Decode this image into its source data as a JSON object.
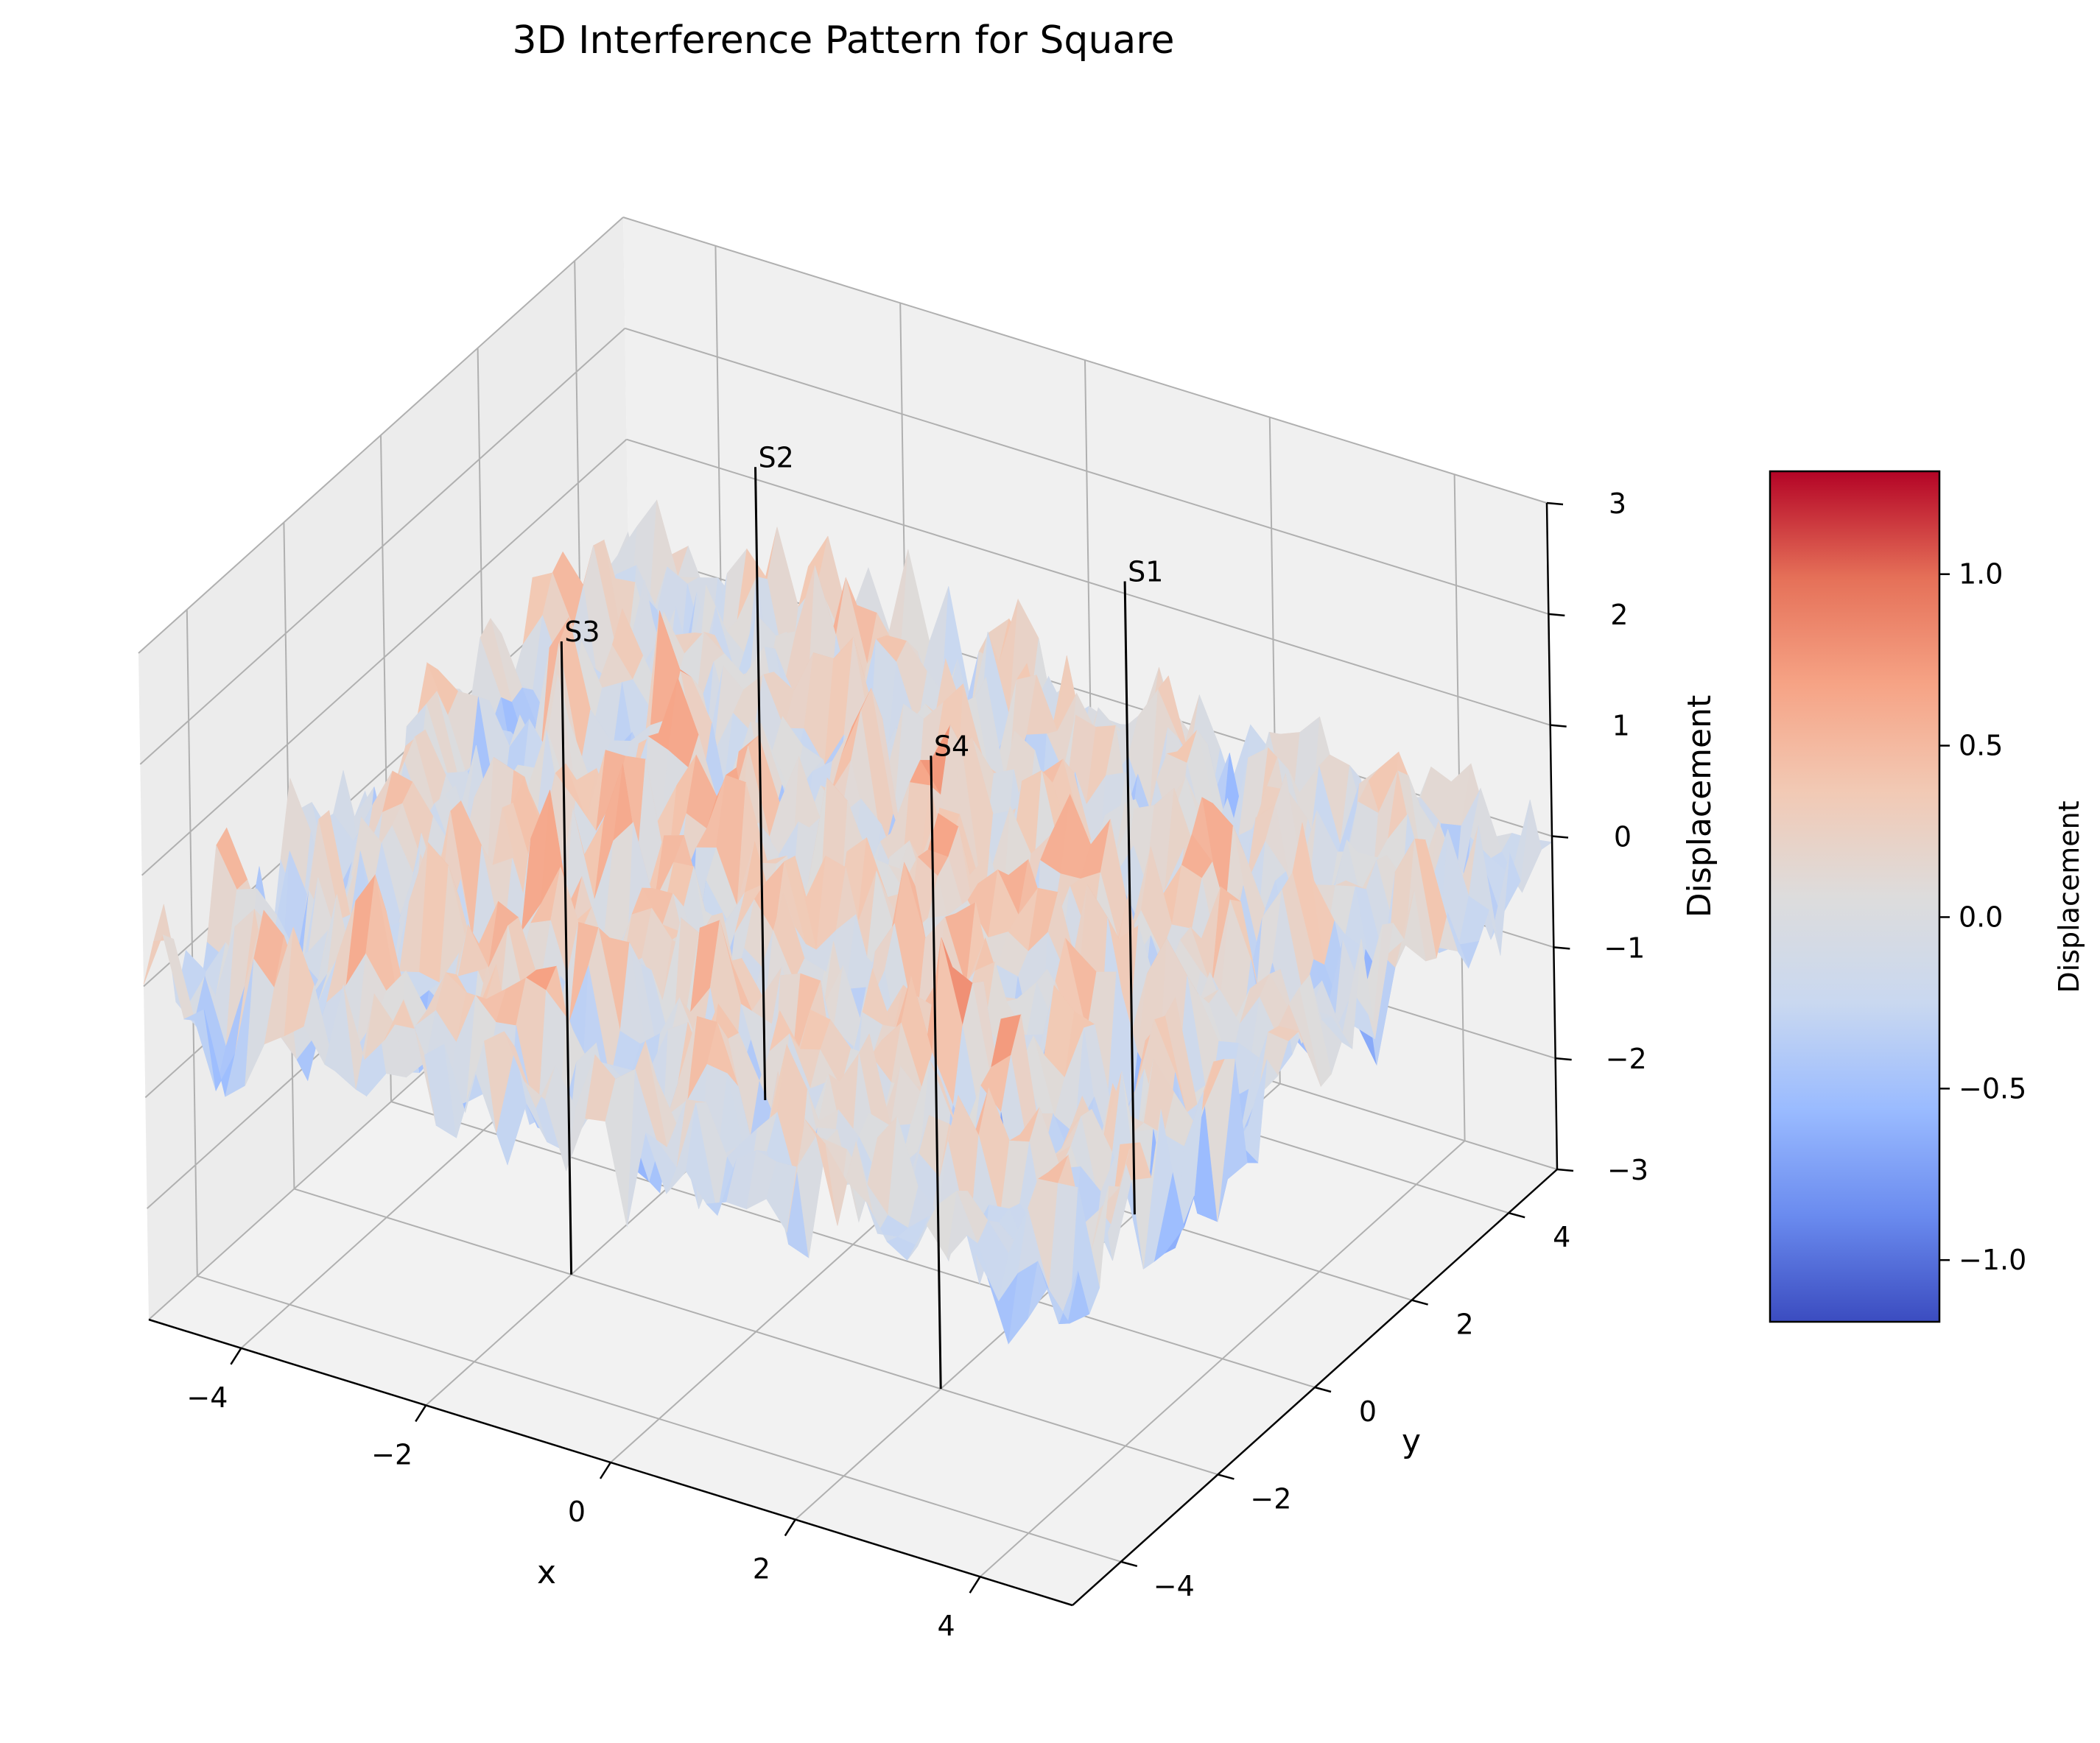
{
  "chart_data": {
    "type": "surface3d",
    "title": "3D Interference Pattern for Square",
    "xlabel": "x",
    "ylabel": "y",
    "zlabel": "Displacement",
    "xlim": [
      -5,
      5
    ],
    "ylim": [
      -5,
      5
    ],
    "zlim": [
      -3,
      3
    ],
    "x_ticks": [
      -4,
      -2,
      0,
      2,
      4
    ],
    "y_ticks": [
      -4,
      -2,
      0,
      2,
      4
    ],
    "z_ticks": [
      -3,
      -2,
      -1,
      0,
      1,
      2,
      3
    ],
    "x_tick_labels": [
      "−4",
      "−2",
      "0",
      "2",
      "4"
    ],
    "y_tick_labels": [
      "−4",
      "−2",
      "0",
      "2",
      "4"
    ],
    "z_tick_labels": [
      "−3",
      "−2",
      "−1",
      "0",
      "1",
      "2",
      "3"
    ],
    "grid": true,
    "colormap": "coolwarm",
    "colormap_stops": [
      "#3b4cc0",
      "#6a8bef",
      "#9abbff",
      "#c9d8f0",
      "#dddcdc",
      "#f2c9b4",
      "#f6a385",
      "#e57058",
      "#b40426"
    ],
    "colorbar": {
      "label": "Displacement",
      "range": [
        -1.18,
        1.3
      ],
      "ticks": [
        -1.0,
        -0.5,
        0.0,
        0.5,
        1.0
      ],
      "tick_labels": [
        "−1.0",
        "−0.5",
        "0.0",
        "0.5",
        "1.0"
      ]
    },
    "sources": [
      {
        "label": "S1",
        "x": 2,
        "y": 2
      },
      {
        "label": "S2",
        "x": -2,
        "y": 2
      },
      {
        "label": "S3",
        "x": -2,
        "y": -2
      },
      {
        "label": "S4",
        "x": 2,
        "y": -2
      }
    ],
    "surface": {
      "grid_n": 46,
      "form": "sum of sin(k*r_i - phi_i) / sqrt(r_i) over the four sources plus high-frequency noise",
      "z_range": [
        -1.18,
        1.3
      ]
    }
  }
}
